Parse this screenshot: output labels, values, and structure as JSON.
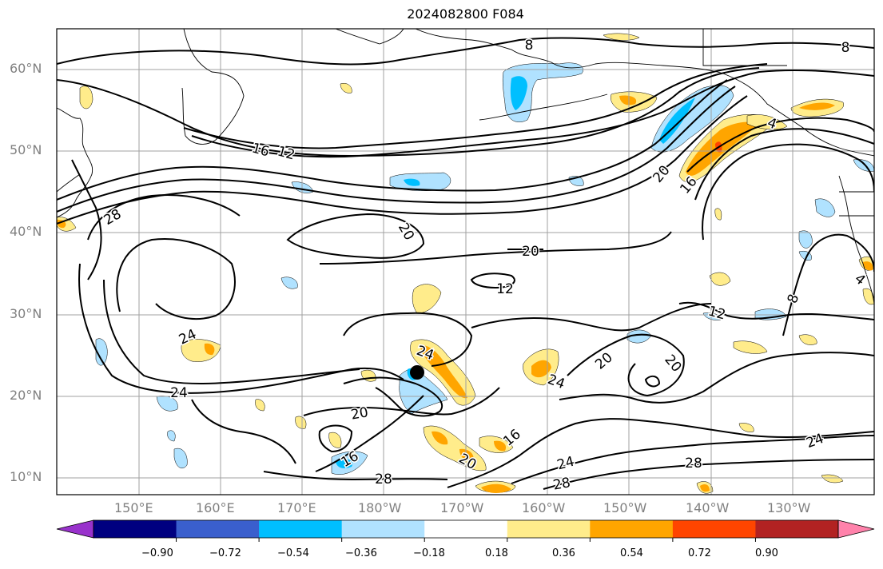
{
  "title": "2024082800 F084",
  "latitude_labels": [
    "60°N",
    "50°N",
    "40°N",
    "30°N",
    "20°N",
    "10°N"
  ],
  "longitude_labels": [
    "150°E",
    "160°E",
    "170°E",
    "180°W",
    "170°W",
    "160°W",
    "150°W",
    "140°W",
    "130°W"
  ],
  "contour_labels": [
    "8",
    "8",
    "12",
    "16",
    "20",
    "16",
    "20",
    "28",
    "20",
    "12",
    "12",
    "24",
    "24",
    "24",
    "20",
    "20",
    "20",
    "24",
    "16",
    "20",
    "16",
    "24",
    "28",
    "28",
    "28",
    "24",
    "8",
    "4",
    "4"
  ],
  "colorbar": {
    "ticks": [
      "−0.90",
      "−0.72",
      "−0.54",
      "−0.36",
      "−0.18",
      "0.18",
      "0.36",
      "0.54",
      "0.72",
      "0.90"
    ],
    "colors": [
      "#9932cc",
      "#000080",
      "#3a5fcd",
      "#00bfff",
      "#b0e2ff",
      "#ffffff",
      "#ffec8b",
      "#ffa500",
      "#ff4500",
      "#b22222",
      "#ff82ab"
    ]
  },
  "colors": {
    "contour": "#000000",
    "coast": "#000000",
    "grid": "#a0a0a0",
    "marker": "#000000"
  }
}
